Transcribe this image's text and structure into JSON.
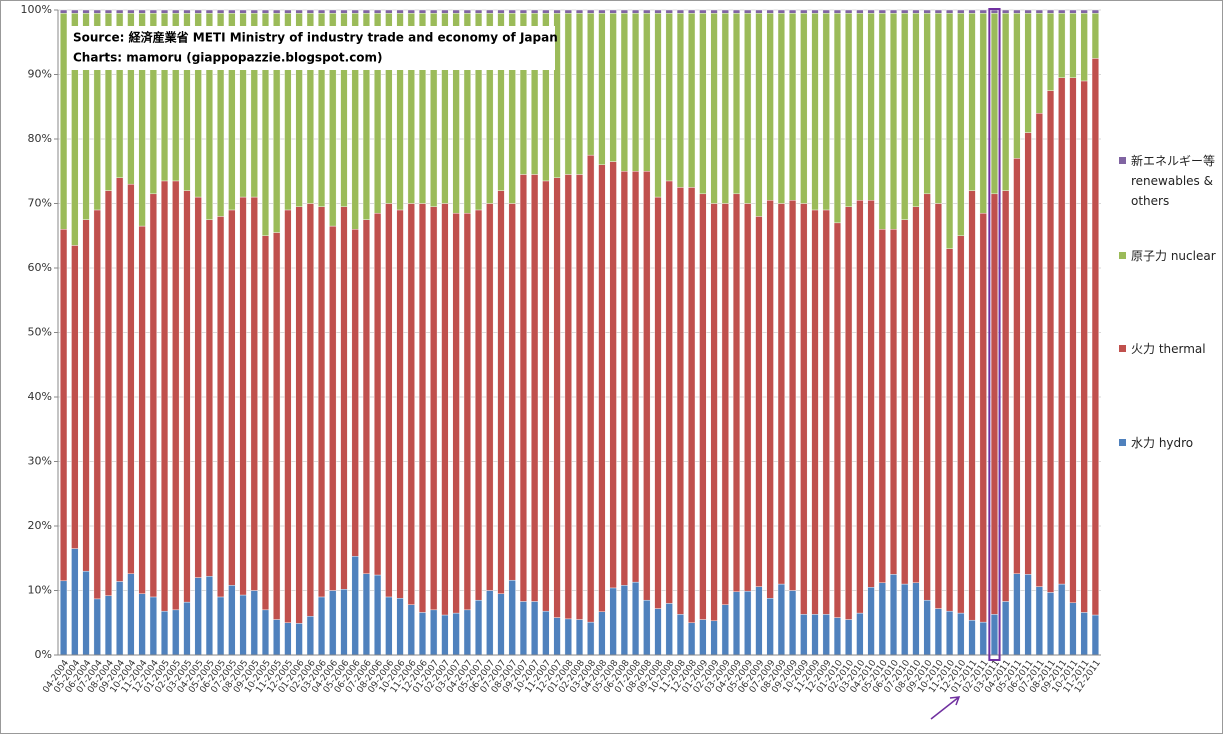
{
  "chart_data": {
    "type": "stacked_bar",
    "annotations": {
      "source": "Source: 経済産業省 METI Ministry of industry trade and economy of Japan",
      "credit": "Charts: mamoru  (giappopazzie.blogspot.com)"
    },
    "categories": [
      "04-2004",
      "05-2004",
      "06-2004",
      "07-2004",
      "08-2004",
      "09-2004",
      "10-2004",
      "11-2004",
      "12-2004",
      "01-2005",
      "02-2005",
      "03-2005",
      "04-2005",
      "05-2005",
      "06-2005",
      "07-2005",
      "08-2005",
      "09-2005",
      "10-2005",
      "11-2005",
      "12-2005",
      "01-2006",
      "02-2006",
      "03-2006",
      "04-2006",
      "05-2006",
      "06-2006",
      "07-2006",
      "08-2006",
      "09-2006",
      "10-2006",
      "11-2006",
      "12-2006",
      "01-2007",
      "02-2007",
      "03-2007",
      "04-2007",
      "05-2007",
      "06-2007",
      "07-2007",
      "08-2007",
      "09-2007",
      "10-2007",
      "11-2007",
      "12-2007",
      "01-2008",
      "02-2008",
      "03-2008",
      "04-2008",
      "05-2008",
      "06-2008",
      "07-2008",
      "08-2008",
      "09-2008",
      "10-2008",
      "11-2008",
      "12-2008",
      "01-2009",
      "02-2009",
      "03-2009",
      "04-2009",
      "05-2009",
      "06-2009",
      "07-2009",
      "08-2009",
      "09-2009",
      "10-2009",
      "11-2009",
      "12-2009",
      "01-2010",
      "02-2010",
      "03-2010",
      "04-2010",
      "05-2010",
      "06-2010",
      "07-2010",
      "08-2010",
      "09-2010",
      "10-2010",
      "11-2010",
      "12-2010",
      "01-2011",
      "02-2011",
      "03-2011",
      "04-2011",
      "05-2011",
      "06-2011",
      "07-2011",
      "08-2011",
      "09-2011",
      "10-2011",
      "11-2011",
      "12-2011"
    ],
    "series": [
      {
        "name": "水力 hydro",
        "color": "#4f81bd",
        "values": [
          11.5,
          16.5,
          13,
          8.7,
          9.2,
          11.4,
          12.6,
          9.5,
          9,
          6.8,
          7,
          8.2,
          12,
          12.2,
          9,
          10.8,
          9.3,
          10,
          7,
          5.5,
          5,
          4.9,
          6,
          9,
          10,
          10.2,
          15.3,
          12.6,
          12.4,
          9,
          8.8,
          7.8,
          6.6,
          7,
          6.2,
          6.5,
          7,
          8.5,
          10,
          9.5,
          11.6,
          8.3,
          8.3,
          6.8,
          5.8,
          5.6,
          5.5,
          5.1,
          6.7,
          10.4,
          10.8,
          11.3,
          8.5,
          7.2,
          8,
          6.3,
          5,
          5.5,
          5.3,
          7.8,
          9.8,
          9.9,
          10.6,
          8.8,
          11,
          10,
          6.3,
          6.3,
          6.3,
          5.8,
          5.5,
          6.5,
          10.5,
          11.2,
          12.5,
          11,
          11.2,
          8.5,
          7.2,
          6.8,
          6.5,
          5.4,
          5.1,
          6.3,
          8.3,
          12.6,
          12.5,
          10.6,
          9.7,
          11,
          8.1,
          6.6,
          6.2
        ]
      },
      {
        "name": "火力 thermal",
        "color": "#c0504d",
        "values": [
          54.5,
          47,
          54.5,
          60.3,
          62.8,
          62.6,
          60.4,
          57,
          62.5,
          66.7,
          66.5,
          63.8,
          59,
          55.3,
          59,
          58.2,
          61.7,
          61,
          58,
          60,
          64,
          64.6,
          64,
          60.5,
          56.5,
          59.3,
          50.7,
          54.9,
          56.1,
          61,
          60.2,
          62.2,
          63.4,
          62.5,
          63.8,
          62,
          61.5,
          60.5,
          60,
          62.5,
          58.4,
          66.2,
          66.2,
          66.7,
          68.2,
          68.9,
          69,
          72.4,
          69.3,
          66.1,
          64.2,
          63.7,
          66.5,
          63.8,
          65.5,
          66.2,
          67.5,
          66,
          64.7,
          62.2,
          61.7,
          60.1,
          57.4,
          61.7,
          59,
          60.5,
          63.7,
          62.7,
          62.7,
          61.2,
          64,
          64,
          60,
          54.8,
          53.5,
          56.5,
          58.3,
          63,
          62.8,
          56.2,
          58.5,
          66.6,
          63.4,
          65.2,
          63.7,
          64.4,
          68.5,
          73.4,
          77.8,
          78.5,
          81.4,
          82.4,
          86.3
        ]
      },
      {
        "name": "原子力 nuclear",
        "color": "#9bbb59",
        "values": [
          33.5,
          36,
          32,
          30.5,
          27.5,
          25.5,
          26.5,
          33,
          28,
          26,
          26,
          27.5,
          28.5,
          32,
          31.5,
          30.5,
          28.5,
          28.5,
          34.5,
          34,
          30.5,
          30,
          29.5,
          30,
          33,
          30,
          33.5,
          32,
          31,
          29.5,
          30.5,
          29.5,
          29.5,
          30,
          29.5,
          31,
          31,
          30.5,
          29.5,
          27.5,
          29.5,
          25,
          25,
          26,
          25.5,
          25,
          25,
          22,
          23.5,
          23,
          24.5,
          24.5,
          24.5,
          28.5,
          26,
          27,
          27,
          28,
          29.5,
          29.5,
          28,
          29.5,
          31.5,
          29,
          29.5,
          29,
          29.5,
          30.5,
          30.5,
          32.5,
          30,
          29,
          29,
          33.5,
          33.5,
          32,
          30,
          28,
          29.5,
          36.5,
          34.5,
          27.5,
          31,
          28,
          27.5,
          22.5,
          18.5,
          15.5,
          12,
          10,
          10,
          10.5,
          7
        ]
      },
      {
        "name": "新エネルギー等 renewables & others",
        "color": "#8064a2",
        "values": [
          0.5,
          0.5,
          0.5,
          0.5,
          0.5,
          0.5,
          0.5,
          0.5,
          0.5,
          0.5,
          0.5,
          0.5,
          0.5,
          0.5,
          0.5,
          0.5,
          0.5,
          0.5,
          0.5,
          0.5,
          0.5,
          0.5,
          0.5,
          0.5,
          0.5,
          0.5,
          0.5,
          0.5,
          0.5,
          0.5,
          0.5,
          0.5,
          0.5,
          0.5,
          0.5,
          0.5,
          0.5,
          0.5,
          0.5,
          0.5,
          0.5,
          0.5,
          0.5,
          0.5,
          0.5,
          0.5,
          0.5,
          0.5,
          0.5,
          0.5,
          0.5,
          0.5,
          0.5,
          0.5,
          0.5,
          0.5,
          0.5,
          0.5,
          0.5,
          0.5,
          0.5,
          0.5,
          0.5,
          0.5,
          0.5,
          0.5,
          0.5,
          0.5,
          0.5,
          0.5,
          0.5,
          0.5,
          0.5,
          0.5,
          0.5,
          0.5,
          0.5,
          0.5,
          0.5,
          0.5,
          0.5,
          0.5,
          0.5,
          0.5,
          0.5,
          0.5,
          0.5,
          0.5,
          0.5,
          0.5,
          0.5,
          0.5,
          0.5
        ]
      }
    ],
    "ylim": [
      0,
      100
    ],
    "yticks": [
      {
        "value": 0,
        "label": "0%"
      },
      {
        "value": 10,
        "label": "10%"
      },
      {
        "value": 20,
        "label": "20%"
      },
      {
        "value": 30,
        "label": "30%"
      },
      {
        "value": 40,
        "label": "40%"
      },
      {
        "value": 50,
        "label": "50%"
      },
      {
        "value": 60,
        "label": "60%"
      },
      {
        "value": 70,
        "label": "70%"
      },
      {
        "value": 80,
        "label": "80%"
      },
      {
        "value": 90,
        "label": "90%"
      },
      {
        "value": 100,
        "label": "100%"
      }
    ],
    "grid": true,
    "legend": "right"
  }
}
